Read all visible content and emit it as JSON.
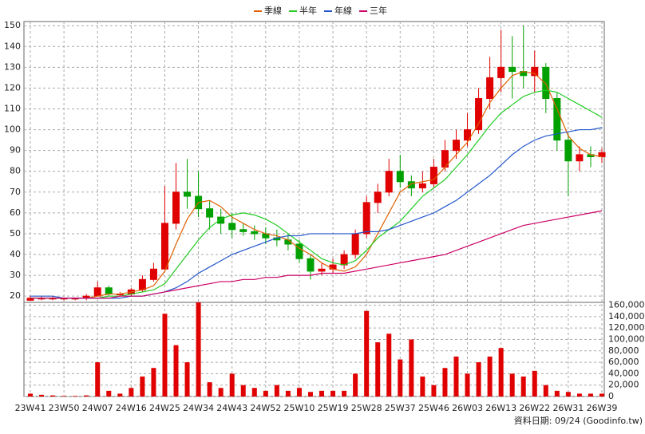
{
  "chart_data": {
    "type": "candlestick",
    "legend_position": "top",
    "grid": true,
    "up_color": "#e00000",
    "down_color": "#00a000",
    "volume_color": "#e00000",
    "footer": "資料日期: 09/24 (Goodinfo.tw)",
    "categories": [
      "23W41",
      null,
      null,
      "23W50",
      null,
      null,
      "24W07",
      null,
      null,
      "24W16",
      null,
      null,
      "24W25",
      null,
      null,
      "24W34",
      null,
      null,
      "24W43",
      null,
      null,
      "24W52",
      null,
      null,
      "25W10",
      null,
      null,
      "25W19",
      null,
      null,
      "25W28",
      null,
      null,
      "25W37",
      null,
      null,
      "25W46",
      null,
      null,
      "26W03",
      null,
      null,
      "26W13",
      null,
      null,
      "26W22",
      null,
      null,
      "26W31",
      null,
      null,
      "26W39"
    ],
    "open": [
      18,
      19,
      19,
      19,
      19,
      19,
      20,
      24,
      21,
      21,
      23,
      28,
      33,
      55,
      70,
      68,
      62,
      58,
      55,
      52,
      51,
      50,
      48,
      47,
      45,
      38,
      32,
      33,
      35,
      40,
      50,
      65,
      70,
      80,
      75,
      72,
      74,
      82,
      90,
      95,
      100,
      115,
      125,
      130,
      128,
      126,
      130,
      115,
      95,
      85,
      88,
      87
    ],
    "high": [
      20,
      20,
      20,
      19,
      19,
      21,
      27,
      25,
      22,
      24,
      30,
      36,
      73,
      84,
      86,
      80,
      66,
      62,
      60,
      55,
      54,
      53,
      52,
      50,
      47,
      40,
      36,
      38,
      42,
      52,
      68,
      74,
      86,
      88,
      78,
      80,
      86,
      95,
      100,
      108,
      120,
      135,
      148,
      145,
      150,
      138,
      132,
      118,
      98,
      92,
      92,
      91
    ],
    "low": [
      18,
      18,
      18,
      18,
      18,
      18,
      20,
      20,
      20,
      20,
      22,
      27,
      33,
      52,
      62,
      58,
      52,
      50,
      48,
      49,
      47,
      45,
      44,
      42,
      36,
      28,
      30,
      31,
      33,
      38,
      48,
      60,
      68,
      72,
      68,
      70,
      72,
      80,
      86,
      92,
      98,
      110,
      118,
      115,
      120,
      118,
      108,
      90,
      68,
      80,
      82,
      84
    ],
    "close": [
      19,
      19,
      19,
      19,
      19,
      20,
      24,
      21,
      21,
      23,
      28,
      33,
      55,
      70,
      68,
      62,
      58,
      55,
      52,
      51,
      50,
      48,
      47,
      45,
      38,
      32,
      33,
      35,
      40,
      50,
      65,
      70,
      80,
      75,
      72,
      74,
      82,
      90,
      95,
      100,
      115,
      125,
      130,
      128,
      126,
      130,
      115,
      95,
      85,
      88,
      87,
      89
    ],
    "ylim": [
      17,
      152
    ],
    "yticks": [
      20,
      30,
      40,
      50,
      60,
      70,
      80,
      90,
      100,
      110,
      120,
      130,
      140,
      150
    ],
    "series": [
      {
        "name": "季線",
        "color": "#e06000",
        "values": [
          19,
          19,
          19,
          19,
          19,
          19,
          20,
          21,
          21,
          22,
          23,
          25,
          32,
          45,
          57,
          65,
          66,
          63,
          58,
          55,
          52,
          50,
          49,
          47,
          43,
          40,
          36,
          33,
          32,
          34,
          40,
          50,
          60,
          70,
          74,
          75,
          76,
          82,
          88,
          94,
          103,
          113,
          120,
          126,
          128,
          127,
          122,
          110,
          97,
          91,
          88,
          87
        ]
      },
      {
        "name": "半年",
        "color": "#22cc22",
        "values": [
          19,
          19,
          19,
          19,
          19,
          19,
          19,
          20,
          20,
          21,
          22,
          23,
          26,
          33,
          40,
          47,
          53,
          57,
          59,
          60,
          59,
          57,
          54,
          50,
          46,
          42,
          38,
          36,
          35,
          37,
          42,
          48,
          52,
          56,
          62,
          68,
          72,
          76,
          82,
          88,
          95,
          102,
          108,
          112,
          116,
          118,
          119,
          118,
          115,
          112,
          109,
          106
        ]
      },
      {
        "name": "年線",
        "color": "#2255cc",
        "values": [
          20,
          20,
          20,
          19,
          19,
          19,
          19,
          19,
          19,
          20,
          20,
          21,
          22,
          24,
          27,
          31,
          34,
          37,
          40,
          42,
          44,
          46,
          48,
          49,
          49,
          50,
          50,
          50,
          50,
          50,
          51,
          51,
          52,
          54,
          56,
          58,
          60,
          63,
          66,
          70,
          74,
          78,
          83,
          88,
          92,
          95,
          97,
          98,
          99,
          100,
          100,
          101
        ]
      },
      {
        "name": "三年",
        "color": "#cc0066",
        "values": [
          19,
          19,
          19,
          19,
          19,
          19,
          19,
          19,
          20,
          20,
          20,
          21,
          22,
          23,
          24,
          25,
          26,
          27,
          27,
          28,
          28,
          29,
          29,
          30,
          30,
          30,
          31,
          31,
          31,
          32,
          33,
          34,
          35,
          36,
          37,
          38,
          39,
          40,
          42,
          44,
          46,
          48,
          50,
          52,
          54,
          55,
          56,
          57,
          58,
          59,
          60,
          61
        ]
      }
    ],
    "volume": {
      "values": [
        5000,
        3000,
        2000,
        1000,
        1000,
        2000,
        60000,
        10000,
        5000,
        15000,
        35000,
        50000,
        145000,
        90000,
        60000,
        165000,
        25000,
        15000,
        40000,
        20000,
        15000,
        10000,
        20000,
        10000,
        15000,
        8000,
        10000,
        10000,
        10000,
        40000,
        150000,
        95000,
        110000,
        65000,
        100000,
        35000,
        20000,
        50000,
        70000,
        40000,
        60000,
        70000,
        85000,
        40000,
        35000,
        45000,
        20000,
        10000,
        8000,
        5000,
        5000,
        5000
      ],
      "ylim": [
        0,
        165000
      ],
      "yticks": [
        0,
        {
          "value": 20000,
          "label": "20,000"
        },
        {
          "value": 40000,
          "label": "40,000"
        },
        {
          "value": 60000,
          "label": "60,000"
        },
        {
          "value": 80000,
          "label": "80,000"
        },
        {
          "value": 100000,
          "label": "100,000"
        },
        {
          "value": 120000,
          "label": "120,000"
        },
        {
          "value": 140000,
          "label": "140,000"
        },
        {
          "value": 160000,
          "label": "160,000"
        }
      ]
    }
  }
}
